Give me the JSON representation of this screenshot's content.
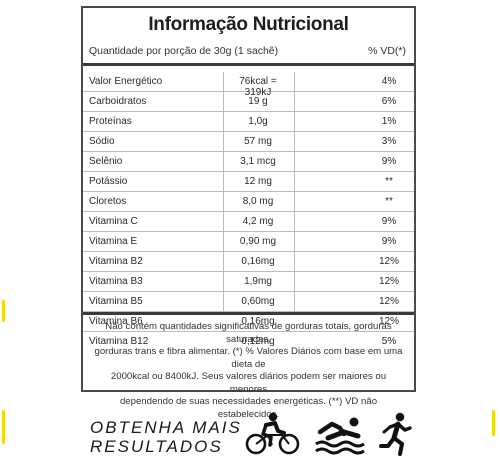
{
  "title": "Informação Nutricional",
  "portion": "Quantidade por porção de 30g (1 sachê)",
  "vd_header": "% VD(*)",
  "rows": [
    {
      "name": "Valor Energético",
      "qty": "76kcal = 319kJ",
      "vd": "4%"
    },
    {
      "name": "Carboidratos",
      "qty": "19 g",
      "vd": "6%"
    },
    {
      "name": "Proteínas",
      "qty": "1,0g",
      "vd": "1%"
    },
    {
      "name": "Sódio",
      "qty": "57 mg",
      "vd": "3%"
    },
    {
      "name": "Selênio",
      "qty": "3,1 mcg",
      "vd": "9%"
    },
    {
      "name": "Potássio",
      "qty": "12 mg",
      "vd": "**"
    },
    {
      "name": "Cloretos",
      "qty": "8,0 mg",
      "vd": "**"
    },
    {
      "name": "Vitamina C",
      "qty": "4,2 mg",
      "vd": "9%"
    },
    {
      "name": "Vitamina E",
      "qty": "0,90 mg",
      "vd": "9%"
    },
    {
      "name": "Vitamina B2",
      "qty": "0,16mg",
      "vd": "12%"
    },
    {
      "name": "Vitamina B3",
      "qty": "1,9mg",
      "vd": "12%"
    },
    {
      "name": "Vitamina B5",
      "qty": "0,60mg",
      "vd": "12%"
    },
    {
      "name": "Vitamina B6",
      "qty": "0,16mg",
      "vd": "12%"
    },
    {
      "name": "Vitamina B12",
      "qty": "0,12mg",
      "vd": "5%"
    }
  ],
  "footnote": [
    "Não contém quantidades significativas de gorduras totais, gorduras saturadas,",
    "gorduras trans e fibra alimentar. (*) % Valores Diários com base em uma dieta de",
    "2000kcal ou 8400kJ. Seus valores diários podem ser maiores ou menores",
    "dependendo de suas necessidades energéticas. (**) VD não estabelecidos."
  ],
  "cta": {
    "line1": "OBTENHA MAIS",
    "line2": "RESULTADOS"
  },
  "icons": [
    "cyclist-icon",
    "swimmer-icon",
    "runner-icon"
  ],
  "colors": {
    "accent": "#f5d90a",
    "text": "#1a1a1a",
    "border": "#4a4a4a"
  }
}
